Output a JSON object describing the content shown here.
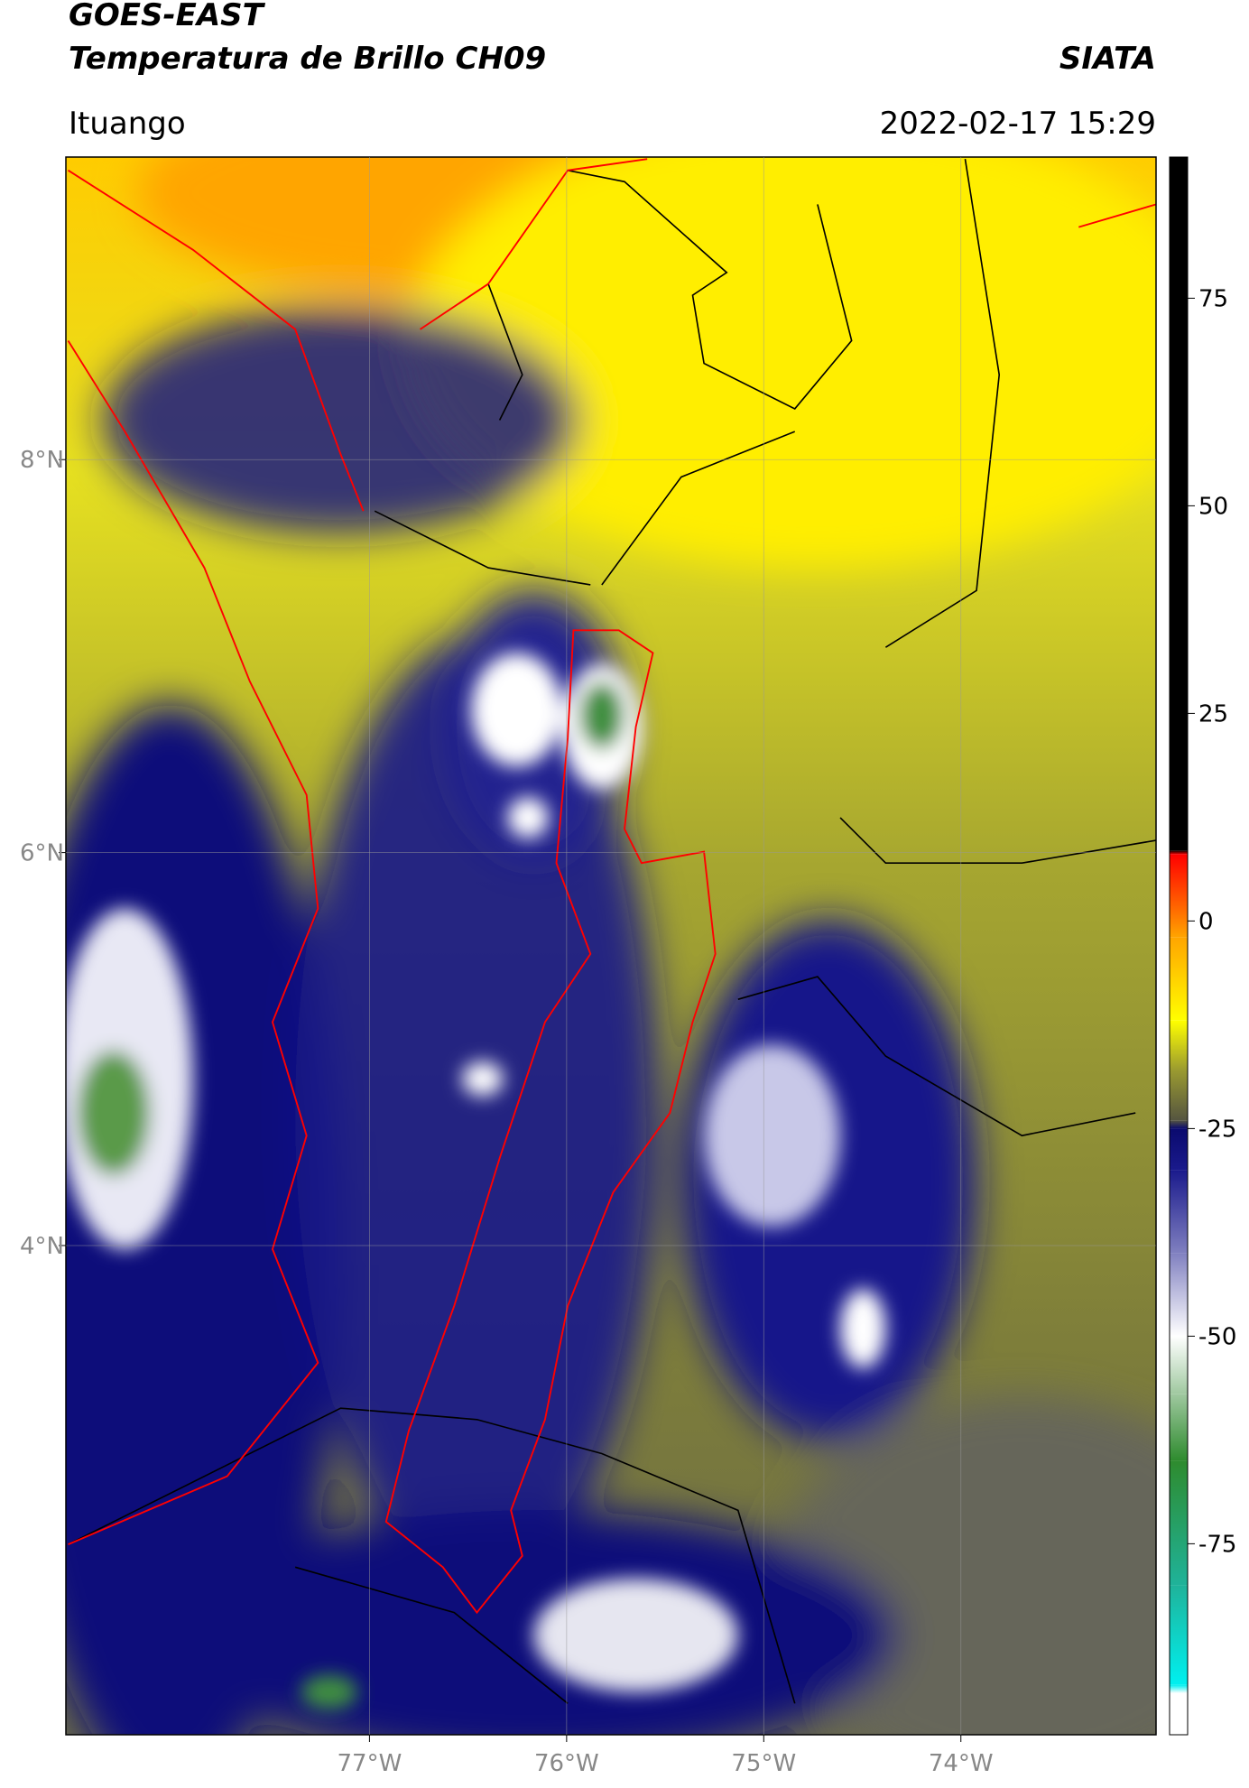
{
  "header": {
    "title_line1": "GOES-EAST",
    "title_line2": "Temperatura de Brillo CH09",
    "source": "SIATA",
    "location": "Ituango",
    "timestamp": "2022-02-17 15:29"
  },
  "map": {
    "xlim": [
      -78.54,
      -73.01
    ],
    "ylim": [
      1.51,
      9.54
    ],
    "xticks": [
      {
        "value": -77,
        "label": "77°W"
      },
      {
        "value": -76,
        "label": "76°W"
      },
      {
        "value": -75,
        "label": "75°W"
      },
      {
        "value": -74,
        "label": "74°W"
      }
    ],
    "yticks": [
      {
        "value": 8,
        "label": "8°N"
      },
      {
        "value": 6,
        "label": "6°N"
      },
      {
        "value": 4,
        "label": "4°N"
      }
    ],
    "grid": true
  },
  "colorbar": {
    "lim": [
      -98,
      92
    ],
    "ticks": [
      -75,
      -50,
      -25,
      0,
      25,
      50,
      75
    ],
    "stops": [
      {
        "value": -98,
        "color": "#ffffff"
      },
      {
        "value": -93,
        "color": "#ffffff"
      },
      {
        "value": -92,
        "color": "#00f0f0"
      },
      {
        "value": -80,
        "color": "#1fb39a"
      },
      {
        "value": -65,
        "color": "#2e8b2e"
      },
      {
        "value": -57,
        "color": "#9fc89f"
      },
      {
        "value": -50,
        "color": "#ffffff"
      },
      {
        "value": -40,
        "color": "#8080c0"
      },
      {
        "value": -30,
        "color": "#1a1a8c"
      },
      {
        "value": -25,
        "color": "#0a0a6e"
      },
      {
        "value": -24,
        "color": "#555540"
      },
      {
        "value": -18,
        "color": "#9a9a30"
      },
      {
        "value": -12,
        "color": "#ffff00"
      },
      {
        "value": -2,
        "color": "#ffa500"
      },
      {
        "value": 2,
        "color": "#ff6000"
      },
      {
        "value": 8,
        "color": "#ff0000"
      },
      {
        "value": 8.5,
        "color": "#000000"
      },
      {
        "value": 92,
        "color": "#000000"
      }
    ]
  }
}
